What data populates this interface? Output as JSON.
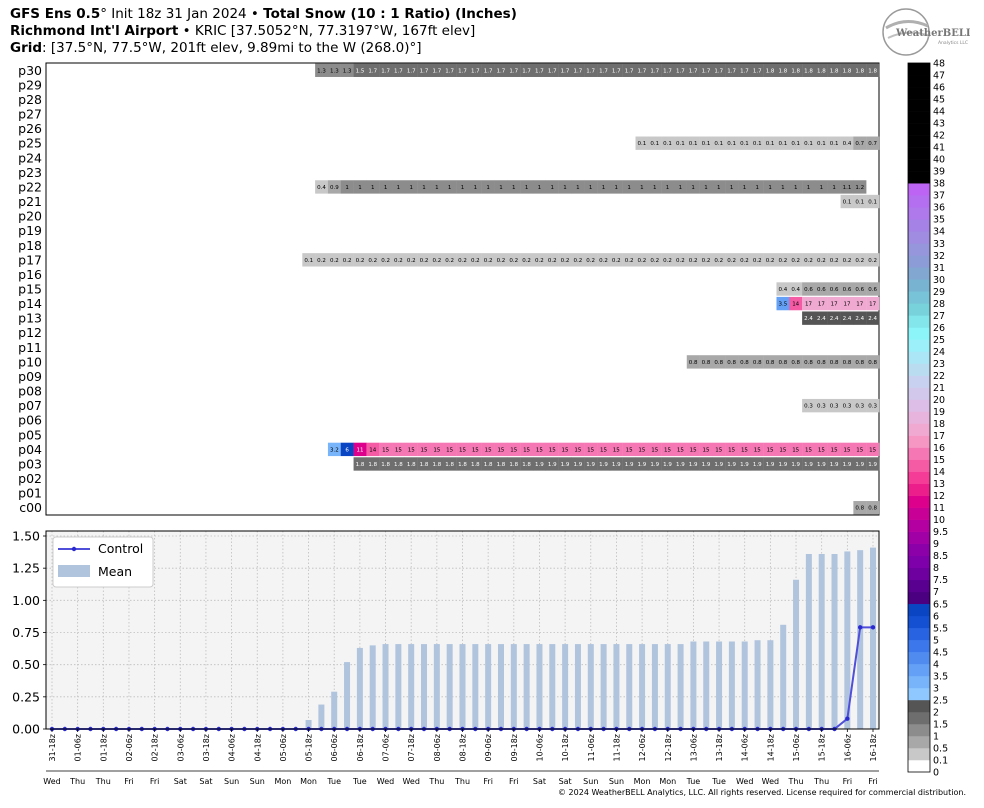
{
  "header": {
    "line1": {
      "model": "GFS Ens 0.5",
      "deg": "°",
      "init": " Init 18z 31 Jan 2024",
      "bullet": " • ",
      "product": "Total Snow (10 : 1 Ratio) (Inches)"
    },
    "line2": {
      "station": "Richmond Int'l Airport",
      "bullet": " • ",
      "coords": "KRIC [37.5052°N, 77.3197°W, 167ft elev]"
    },
    "line3": {
      "label": "Grid",
      "text": ": [37.5°N, 77.5°W, 201ft elev, 9.89mi to the W (268.0)°]"
    }
  },
  "logo": {
    "text": "WeatherBELL",
    "sub": "Analytics LLC"
  },
  "footer": "© 2024 WeatherBELL Analytics, LLC. All rights reserved. License required for commercial distribution.",
  "chart_data": [
    {
      "type": "heatmap",
      "members": [
        "p30",
        "p29",
        "p28",
        "p27",
        "p26",
        "p25",
        "p24",
        "p23",
        "p22",
        "p21",
        "p20",
        "p19",
        "p18",
        "p17",
        "p16",
        "p15",
        "p14",
        "p13",
        "p12",
        "p11",
        "p10",
        "p09",
        "p08",
        "p07",
        "p06",
        "p05",
        "p04",
        "p03",
        "p02",
        "p01",
        "c00"
      ],
      "n_times": 65,
      "rows": {
        "p30": {
          "start": 21,
          "values": [
            1.3,
            1.3,
            1.3,
            1.5,
            1.7,
            1.7,
            1.7,
            1.7,
            1.7,
            1.7,
            1.7,
            1.7,
            1.7,
            1.7,
            1.7,
            1.7,
            1.7,
            1.7,
            1.7,
            1.7,
            1.7,
            1.7,
            1.7,
            1.7,
            1.7,
            1.7,
            1.7,
            1.7,
            1.7,
            1.7,
            1.7,
            1.7,
            1.7,
            1.7,
            1.7,
            1.8,
            1.8,
            1.8,
            1.8,
            1.8,
            1.8,
            1.8,
            1.8,
            1.8
          ]
        },
        "p25": {
          "start": 46,
          "values": [
            0.1,
            0.1,
            0.1,
            0.1,
            0.1,
            0.1,
            0.1,
            0.1,
            0.1,
            0.1,
            0.1,
            0.1,
            0.1,
            0.1,
            0.1,
            0.1,
            0.4,
            0.7,
            0.7
          ]
        },
        "p22": {
          "start": 21,
          "values": [
            0.4,
            0.9,
            1,
            1,
            1,
            1,
            1,
            1,
            1,
            1,
            1,
            1,
            1,
            1,
            1,
            1,
            1,
            1,
            1,
            1,
            1,
            1,
            1,
            1,
            1,
            1,
            1,
            1,
            1,
            1,
            1,
            1,
            1,
            1,
            1,
            1,
            1,
            1,
            1,
            1,
            1,
            1.1,
            1.2
          ]
        },
        "p21": {
          "start": 62,
          "values": [
            0.1,
            0.1,
            0.1
          ]
        },
        "p17": {
          "start": 20,
          "values": [
            0.1,
            0.2,
            0.2,
            0.2,
            0.2,
            0.2,
            0.2,
            0.2,
            0.2,
            0.2,
            0.2,
            0.2,
            0.2,
            0.2,
            0.2,
            0.2,
            0.2,
            0.2,
            0.2,
            0.2,
            0.2,
            0.2,
            0.2,
            0.2,
            0.2,
            0.2,
            0.2,
            0.2,
            0.2,
            0.2,
            0.2,
            0.2,
            0.2,
            0.2,
            0.2,
            0.2,
            0.2,
            0.2,
            0.2,
            0.2,
            0.2,
            0.2,
            0.2,
            0.2,
            0.2
          ]
        },
        "p15": {
          "start": 57,
          "values": [
            0.4,
            0.4,
            0.6,
            0.6,
            0.6,
            0.6,
            0.6,
            0.6
          ]
        },
        "p14": {
          "start": 57,
          "values": [
            3.5,
            14,
            17,
            17,
            17,
            17,
            17,
            17
          ]
        },
        "p13": {
          "start": 59,
          "values": [
            2.4,
            2.4,
            2.4,
            2.4,
            2.4,
            2.4
          ]
        },
        "p10": {
          "start": 50,
          "values": [
            0.8,
            0.8,
            0.8,
            0.8,
            0.8,
            0.8,
            0.8,
            0.8,
            0.8,
            0.8,
            0.8,
            0.8,
            0.8,
            0.8,
            0.8
          ]
        },
        "p07": {
          "start": 59,
          "values": [
            0.3,
            0.3,
            0.3,
            0.3,
            0.3,
            0.3
          ]
        },
        "p04": {
          "start": 22,
          "values": [
            3.2,
            6,
            11,
            14,
            15,
            15,
            15,
            15,
            15,
            15,
            15,
            15,
            15,
            15,
            15,
            15,
            15,
            15,
            15,
            15,
            15,
            15,
            15,
            15,
            15,
            15,
            15,
            15,
            15,
            15,
            15,
            15,
            15,
            15,
            15,
            15,
            15,
            15,
            15,
            15,
            15,
            15,
            15
          ]
        },
        "p03": {
          "start": 24,
          "values": [
            1.8,
            1.8,
            1.8,
            1.8,
            1.8,
            1.8,
            1.8,
            1.8,
            1.8,
            1.8,
            1.8,
            1.8,
            1.8,
            1.8,
            1.9,
            1.9,
            1.9,
            1.9,
            1.9,
            1.9,
            1.9,
            1.9,
            1.9,
            1.9,
            1.9,
            1.9,
            1.9,
            1.9,
            1.9,
            1.9,
            1.9,
            1.9,
            1.9,
            1.9,
            1.9,
            1.9,
            1.9,
            1.9,
            1.9,
            1.9,
            1.9
          ]
        },
        "c00": {
          "start": 63,
          "values": [
            0.8,
            0.8
          ]
        }
      }
    },
    {
      "type": "bar",
      "series": [
        {
          "name": "Control",
          "type": "line",
          "values": [
            0,
            0,
            0,
            0,
            0,
            0,
            0,
            0,
            0,
            0,
            0,
            0,
            0,
            0,
            0,
            0,
            0,
            0,
            0,
            0,
            0,
            0,
            0,
            0,
            0,
            0,
            0,
            0,
            0,
            0,
            0,
            0,
            0,
            0,
            0,
            0,
            0,
            0,
            0,
            0,
            0,
            0,
            0,
            0,
            0,
            0,
            0,
            0,
            0,
            0,
            0,
            0,
            0,
            0,
            0,
            0,
            0,
            0,
            0,
            0,
            0,
            0,
            0.08,
            0.79,
            0.79
          ]
        },
        {
          "name": "Mean",
          "type": "bar",
          "values": [
            0,
            0,
            0,
            0,
            0,
            0,
            0,
            0,
            0,
            0,
            0,
            0,
            0,
            0,
            0,
            0,
            0,
            0,
            0,
            0,
            0.07,
            0.19,
            0.29,
            0.52,
            0.63,
            0.65,
            0.66,
            0.66,
            0.66,
            0.66,
            0.66,
            0.66,
            0.66,
            0.66,
            0.66,
            0.66,
            0.66,
            0.66,
            0.66,
            0.66,
            0.66,
            0.66,
            0.66,
            0.66,
            0.66,
            0.66,
            0.66,
            0.66,
            0.66,
            0.66,
            0.68,
            0.68,
            0.68,
            0.68,
            0.68,
            0.69,
            0.69,
            0.81,
            1.16,
            1.36,
            1.36,
            1.36,
            1.38,
            1.39,
            1.41
          ]
        }
      ],
      "yticks": [
        "0.00",
        "0.25",
        "0.50",
        "0.75",
        "1.00",
        "1.25",
        "1.50"
      ],
      "ylim": [
        0,
        1.5
      ],
      "grid": true,
      "legend_position": "top-left",
      "xlabels": [
        [
          "31-18z",
          "Wed"
        ],
        [
          "01-06z",
          "Thu"
        ],
        [
          "01-18z",
          "Thu"
        ],
        [
          "02-06z",
          "Fri"
        ],
        [
          "02-18z",
          "Fri"
        ],
        [
          "03-06z",
          "Sat"
        ],
        [
          "03-18z",
          "Sat"
        ],
        [
          "04-06z",
          "Sun"
        ],
        [
          "04-18z",
          "Sun"
        ],
        [
          "05-06z",
          "Mon"
        ],
        [
          "05-18z",
          "Mon"
        ],
        [
          "06-06z",
          "Tue"
        ],
        [
          "06-18z",
          "Tue"
        ],
        [
          "07-06z",
          "Wed"
        ],
        [
          "07-18z",
          "Wed"
        ],
        [
          "08-06z",
          "Thu"
        ],
        [
          "08-18z",
          "Thu"
        ],
        [
          "09-06z",
          "Fri"
        ],
        [
          "09-18z",
          "Fri"
        ],
        [
          "10-06z",
          "Sat"
        ],
        [
          "10-18z",
          "Sat"
        ],
        [
          "11-06z",
          "Sun"
        ],
        [
          "11-18z",
          "Sun"
        ],
        [
          "12-06z",
          "Mon"
        ],
        [
          "12-18z",
          "Mon"
        ],
        [
          "13-06z",
          "Tue"
        ],
        [
          "13-18z",
          "Tue"
        ],
        [
          "14-06z",
          "Wed"
        ],
        [
          "14-18z",
          "Wed"
        ],
        [
          "15-06z",
          "Thu"
        ],
        [
          "15-18z",
          "Thu"
        ],
        [
          "16-06z",
          "Fri"
        ],
        [
          "16-18z",
          "Fri"
        ]
      ]
    }
  ],
  "colorbar": {
    "labels": [
      "0",
      "0.1",
      "0.5",
      "1",
      "1.5",
      "2",
      "2.5",
      "3",
      "3.5",
      "4",
      "4.5",
      "5",
      "5.5",
      "6",
      "6.5",
      "7",
      "7.5",
      "8",
      "8.5",
      "9",
      "9.5",
      "10",
      "11",
      "12",
      "13",
      "14",
      "15",
      "16",
      "17",
      "18",
      "19",
      "20",
      "21",
      "22",
      "23",
      "24",
      "25",
      "26",
      "27",
      "28",
      "29",
      "30",
      "31",
      "32",
      "33",
      "34",
      "35",
      "36",
      "37",
      "38",
      "39",
      "40",
      "41",
      "42",
      "43",
      "44",
      "45",
      "46",
      "47",
      "48"
    ],
    "colors": [
      "#ffffff",
      "#c8c8c8",
      "#a8a8a8",
      "#8c8c8c",
      "#6e6e6e",
      "#555555",
      "#8ec8ff",
      "#78b4fa",
      "#64a0f5",
      "#508cf0",
      "#3c78eb",
      "#2864e1",
      "#1450d2",
      "#0a46c3",
      "#4b0082",
      "#5a0091",
      "#6e00a0",
      "#7d00aa",
      "#8c00aa",
      "#a000a5",
      "#b400a0",
      "#c80096",
      "#dc008c",
      "#eb1e8c",
      "#f53c96",
      "#f55aa5",
      "#f578b4",
      "#f596c3",
      "#f0aad2",
      "#e6b4dc",
      "#dcbee6",
      "#d2c8eb",
      "#c8d2f0",
      "#b9dcf0",
      "#aae6f5",
      "#9bf0fa",
      "#8cf5fa",
      "#82e6eb",
      "#78d2dc",
      "#78c3d7",
      "#78b4d2",
      "#82a8d2",
      "#8c9cd7",
      "#9696dc",
      "#a08ce1",
      "#a582e6",
      "#af78eb",
      "#b46ef0",
      "#be64f5"
    ]
  }
}
